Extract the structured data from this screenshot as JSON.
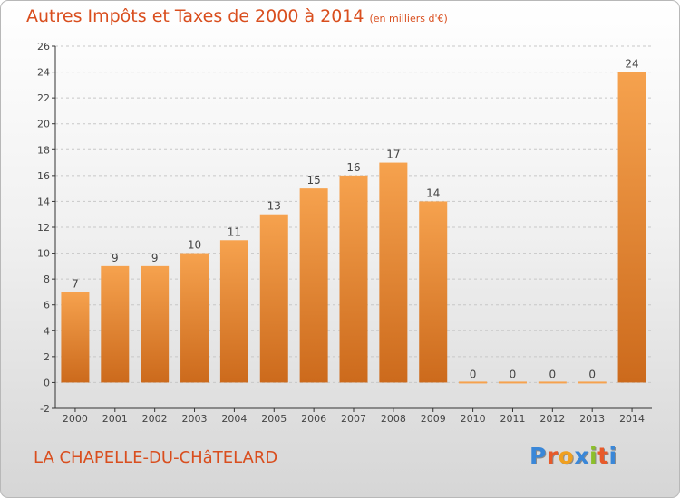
{
  "header": {
    "title": "Autres Impôts et Taxes de 2000 à 2014",
    "unit_note": "(en milliers d'€)"
  },
  "footer": {
    "commune": "LA CHAPELLE-DU-CHâTELARD",
    "brand": "Proxiti",
    "brand_colors": [
      "#3a87d8",
      "#e85a2a",
      "#f0a020",
      "#3a87d8",
      "#8cbf2a",
      "#e85a2a",
      "#3a87d8"
    ]
  },
  "colors": {
    "title": "#d94e1e",
    "bar_top": "#f6a24e",
    "bar_bottom": "#cc6a1c",
    "axis": "#333333",
    "grid": "#c8c8c8"
  },
  "chart_data": {
    "type": "bar",
    "title": "Autres Impôts et Taxes de 2000 à 2014",
    "subtitle": "(en milliers d'€)",
    "categories": [
      "2000",
      "2001",
      "2002",
      "2003",
      "2004",
      "2005",
      "2006",
      "2007",
      "2008",
      "2009",
      "2010",
      "2011",
      "2012",
      "2013",
      "2014"
    ],
    "values": [
      7,
      9,
      9,
      10,
      11,
      13,
      15,
      16,
      17,
      14,
      0,
      0,
      0,
      0,
      24
    ],
    "data_labels": [
      "7",
      "9",
      "9",
      "10",
      "11",
      "13",
      "15",
      "16",
      "17",
      "14",
      "0",
      "0",
      "0",
      "0",
      "24"
    ],
    "ylim": [
      -2,
      26
    ],
    "yticks": [
      -2,
      0,
      2,
      4,
      6,
      8,
      10,
      12,
      14,
      16,
      18,
      20,
      22,
      24,
      26
    ],
    "ytick_labels": [
      "-2",
      "0",
      "2",
      "4",
      "6",
      "8",
      "10",
      "12",
      "14",
      "16",
      "18",
      "20",
      "22",
      "24",
      "26"
    ],
    "xlabel": "",
    "ylabel": "",
    "grid": "horizontal dashed",
    "legend": "none"
  }
}
